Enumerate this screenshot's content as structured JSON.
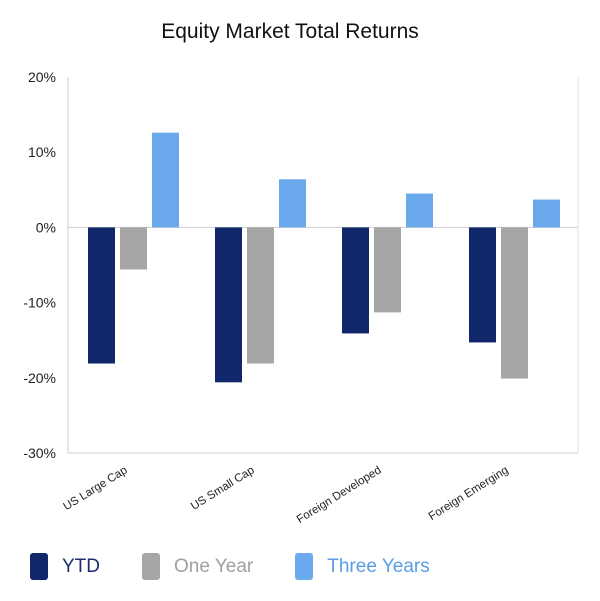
{
  "chart_data": {
    "type": "bar",
    "title": "Equity Market Total Returns",
    "xlabel": "",
    "ylabel": "",
    "categories": [
      "US Large Cap",
      "US Small Cap",
      "Foreign Developed",
      "Foreign Emerging"
    ],
    "series": [
      {
        "name": "YTD",
        "color": "#10276b",
        "values": [
          -18.1,
          -20.6,
          -14.1,
          -15.3
        ]
      },
      {
        "name": "One Year",
        "color": "#a6a6a6",
        "values": [
          -5.6,
          -18.1,
          -11.3,
          -20.1
        ]
      },
      {
        "name": "Three Years",
        "color": "#6aa9ec",
        "values": [
          12.6,
          6.4,
          4.5,
          3.7
        ]
      }
    ],
    "ylim": [
      -30,
      20
    ],
    "yticks": [
      20,
      10,
      0,
      -10,
      -20,
      -30
    ],
    "ytick_labels": [
      "20%",
      "10%",
      "0%",
      "-10%",
      "-20%",
      "-30%"
    ],
    "grid": false,
    "legend_position": "bottom"
  }
}
